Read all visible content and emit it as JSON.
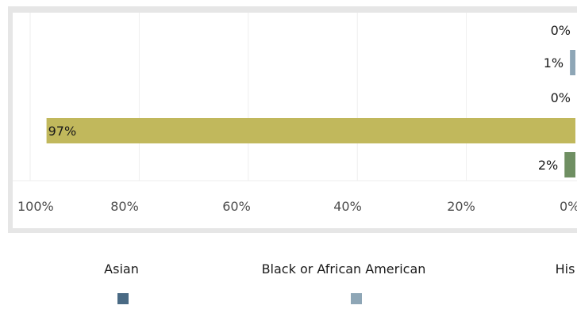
{
  "chart_data": {
    "type": "bar",
    "orientation": "horizontal",
    "axis_reversed": true,
    "xlim": [
      0,
      100
    ],
    "x_ticks": [
      "100%",
      "80%",
      "60%",
      "40%",
      "20%",
      "0%"
    ],
    "grid": true,
    "bars": [
      {
        "value": 0,
        "label": "0%",
        "color": "#4a6a84"
      },
      {
        "value": 1,
        "label": "1%",
        "color": "#8ea6b6"
      },
      {
        "value": 0,
        "label": "0%",
        "color": "#8a8a8a"
      },
      {
        "value": 97,
        "label": "97%",
        "color": "#c1b85c"
      },
      {
        "value": 2,
        "label": "2%",
        "color": "#6f8f62"
      }
    ],
    "legend": {
      "placement": "bottom",
      "entries": [
        {
          "name": "Asian",
          "color": "#4a6a84"
        },
        {
          "name": "Black or African American",
          "color": "#8ea6b6"
        },
        {
          "name": "His",
          "color": "#8a8a8a"
        }
      ]
    }
  }
}
